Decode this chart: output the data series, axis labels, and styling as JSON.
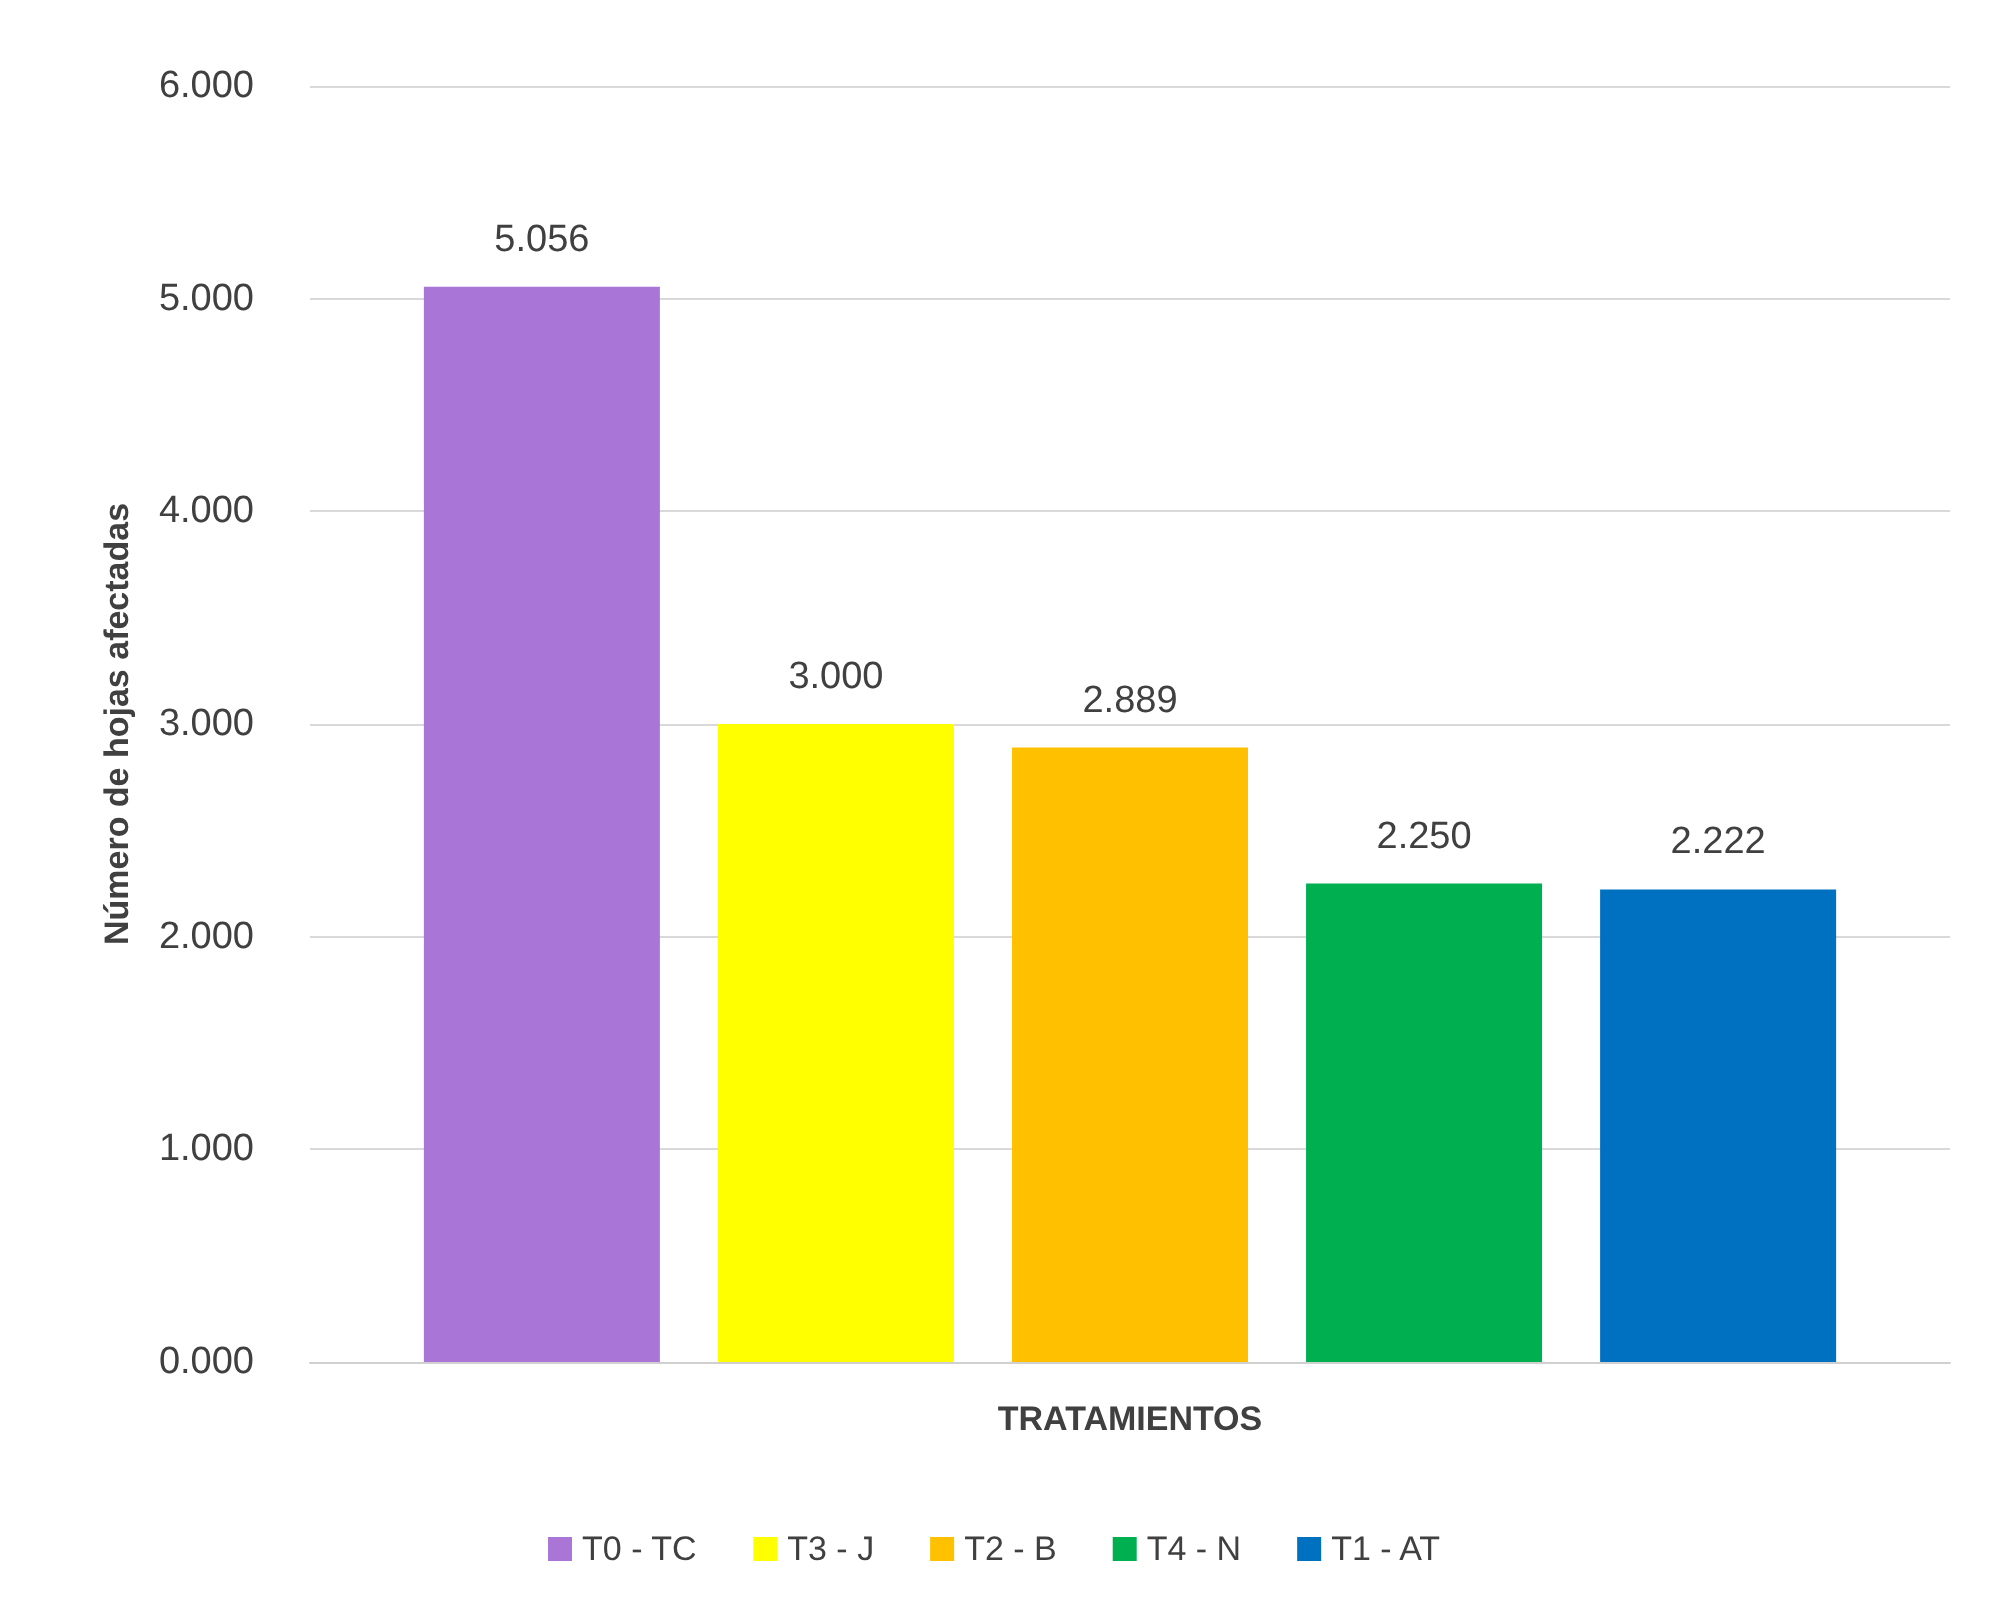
{
  "chart_data": {
    "type": "bar",
    "xlabel": "TRATAMIENTOS",
    "ylabel": "Número de hojas afectadas",
    "categories": [
      null
    ],
    "series": [
      {
        "name": "T0 - TC",
        "color": "#a975d6",
        "values": [
          5.056
        ],
        "value_labels": [
          "5.056"
        ]
      },
      {
        "name": "T3 - J",
        "color": "#ffff00",
        "values": [
          3.0
        ],
        "value_labels": [
          "3.000"
        ]
      },
      {
        "name": "T2 - B",
        "color": "#ffc000",
        "values": [
          2.889
        ],
        "value_labels": [
          "2.889"
        ]
      },
      {
        "name": "T4 - N",
        "color": "#00b050",
        "values": [
          2.25
        ],
        "value_labels": [
          "2.250"
        ]
      },
      {
        "name": "T1 - AT",
        "color": "#0070c0",
        "values": [
          2.222
        ],
        "value_labels": [
          "2.222"
        ]
      }
    ],
    "ylim": [
      0,
      6
    ],
    "yticks": [
      {
        "value": 0,
        "label": "0.000"
      },
      {
        "value": 1,
        "label": "1.000"
      },
      {
        "value": 2,
        "label": "2.000"
      },
      {
        "value": 3,
        "label": "3.000"
      },
      {
        "value": 4,
        "label": "4.000"
      },
      {
        "value": 5,
        "label": "5.000"
      },
      {
        "value": 6,
        "label": "6.000"
      }
    ],
    "grid": "y",
    "legend": "bottom",
    "tick_labels": "y"
  }
}
